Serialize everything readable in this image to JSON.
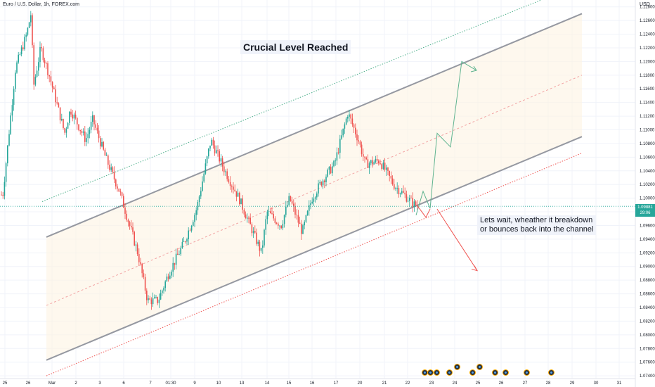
{
  "header": {
    "symbol_title": "Euro / U.S. Dollar, 1h, FOREX.com",
    "currency": "USD"
  },
  "annotations": {
    "headline": "Crucial Level Reached",
    "note_line1": "Lets wait, wheather it breakdown",
    "note_line2": "or bounces back into the channel"
  },
  "price_label": {
    "price": "1.09881",
    "countdown": "29:06"
  },
  "colors": {
    "up": "#26a69a",
    "down": "#ef5350",
    "channel_line": "#9598a1",
    "channel_fill": "#fdf3e3",
    "projection_up": "#5fb38f",
    "projection_down": "#ef5350",
    "outer_upper": "#4caf8a",
    "outer_lower": "#ef5350"
  },
  "event_icons": [
    "flag-events",
    "flag-events",
    "flag-events",
    "flag-events",
    "flag-events",
    "flag-events",
    "flag-events",
    "flag-events",
    "flag-events"
  ],
  "chart_data": {
    "type": "candlestick",
    "title": "Euro / U.S. Dollar, 1h, FOREX.com",
    "y_axis": {
      "side": "right",
      "range": [
        1.0736,
        1.129
      ],
      "tick_labels": [
        "1.12800",
        "1.12600",
        "1.12400",
        "1.12200",
        "1.12000",
        "1.11800",
        "1.11600",
        "1.11400",
        "1.11200",
        "1.11000",
        "1.10800",
        "1.10600",
        "1.10400",
        "1.10200",
        "1.10000",
        "1.09800",
        "1.09600",
        "1.09400",
        "1.09200",
        "1.09000",
        "1.08800",
        "1.08600",
        "1.08400",
        "1.08200",
        "1.08000",
        "1.07800",
        "1.07600",
        "1.07400"
      ],
      "tick_values": [
        1.128,
        1.126,
        1.124,
        1.122,
        1.12,
        1.118,
        1.116,
        1.114,
        1.112,
        1.11,
        1.108,
        1.106,
        1.104,
        1.102,
        1.1,
        1.098,
        1.096,
        1.094,
        1.092,
        1.09,
        1.088,
        1.086,
        1.084,
        1.082,
        1.08,
        1.078,
        1.076,
        1.074
      ]
    },
    "x_axis": {
      "side": "bottom",
      "tick_labels": [
        "25",
        "26",
        "Mar",
        "2",
        "3",
        "6",
        "7",
        "01:30",
        "9",
        "10",
        "13",
        "14",
        "15",
        "16",
        "17",
        "20",
        "21",
        "22",
        "23",
        "24",
        "25",
        "26",
        "27",
        "28",
        "29",
        "30",
        "31"
      ],
      "tick_positions_label": "date"
    },
    "price_path": [
      [
        "25",
        1.1005
      ],
      [
        "25",
        1.119
      ],
      [
        "26",
        1.124
      ],
      [
        "26",
        1.127
      ],
      [
        "Mar",
        1.1165
      ],
      [
        "Mar",
        1.122
      ],
      [
        "Mar",
        1.118
      ],
      [
        "2",
        1.1095
      ],
      [
        "2",
        1.113
      ],
      [
        "3",
        1.1085
      ],
      [
        "3",
        1.1115
      ],
      [
        "6",
        1.106
      ],
      [
        "6",
        1.101
      ],
      [
        "7",
        1.092
      ],
      [
        "7",
        1.085
      ],
      [
        "01:30",
        1.085
      ],
      [
        "01:30",
        1.089
      ],
      [
        "9",
        1.0935
      ],
      [
        "9",
        1.0985
      ],
      [
        "10",
        1.1085
      ],
      [
        "10",
        1.104
      ],
      [
        "13",
        1.1
      ],
      [
        "13",
        1.097
      ],
      [
        "14",
        1.092
      ],
      [
        "14",
        1.098
      ],
      [
        "15",
        1.096
      ],
      [
        "15",
        1.1
      ],
      [
        "16",
        1.095
      ],
      [
        "16",
        1.1
      ],
      [
        "17",
        1.1025
      ],
      [
        "17",
        1.105
      ],
      [
        "17",
        1.1125
      ],
      [
        "20",
        1.1085
      ],
      [
        "20",
        1.105
      ],
      [
        "21",
        1.1055
      ],
      [
        "21",
        1.102
      ],
      [
        "22",
        1.099
      ]
    ],
    "last_price": 1.09881,
    "channel": {
      "upper": [
        [
          "26",
          null
        ],
        [
          null,
          null
        ]
      ],
      "description_values": "ascending parallel channel"
    },
    "lines": {
      "channel_upper": {
        "start_price": 1.0943,
        "end_price": 1.127
      },
      "channel_mid_dashed": {
        "start_price": 1.0843,
        "end_price": 1.118
      },
      "channel_lower": {
        "start_price": 1.0763,
        "end_price": 1.109
      },
      "outer_upper_dotted": {
        "start_price": 1.0995,
        "end_price": 1.129
      },
      "outer_lower_dotted": {
        "start_price": 1.074,
        "end_price": 1.1066
      }
    },
    "projections": {
      "bullish": [
        1.0975,
        1.101,
        1.0985,
        1.1095,
        1.1075,
        1.12,
        1.1187
      ],
      "bearish": [
        1.0984,
        1.0894
      ]
    },
    "grid": true,
    "legend": "none"
  }
}
